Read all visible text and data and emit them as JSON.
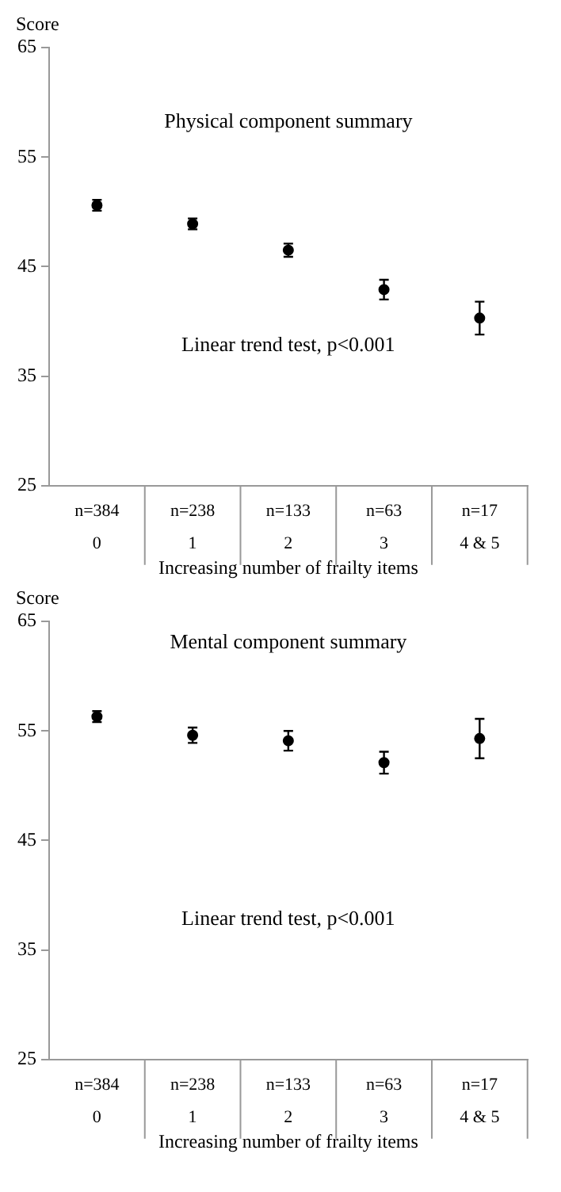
{
  "chart_data": [
    {
      "type": "scatter",
      "title": "Physical component summary",
      "ylabel": "Score",
      "xlabel": "Increasing number of frailty items",
      "categories": [
        "0",
        "1",
        "2",
        "3",
        "4 & 5"
      ],
      "series": [
        {
          "color": "#000000",
          "values": [
            50.6,
            48.9,
            46.5,
            42.9,
            40.3
          ],
          "errors": [
            0.5,
            0.5,
            0.6,
            0.9,
            1.5
          ]
        }
      ],
      "ylim": [
        25,
        65
      ],
      "yticks": [
        25,
        35,
        45,
        55,
        65
      ],
      "grid": false,
      "legend": false,
      "marker": "circle",
      "annotations": [
        "Linear trend test, p<0.001",
        "n=384",
        "n=238",
        "n=133",
        "n=63",
        "n=17"
      ]
    },
    {
      "type": "scatter",
      "title": "Mental component summary",
      "ylabel": "Score",
      "xlabel": "Increasing number of frailty items",
      "categories": [
        "0",
        "1",
        "2",
        "3",
        "4 & 5"
      ],
      "series": [
        {
          "color": "#000000",
          "values": [
            56.3,
            54.6,
            54.1,
            52.1,
            54.3
          ],
          "errors": [
            0.5,
            0.7,
            0.9,
            1.0,
            1.8
          ]
        }
      ],
      "ylim": [
        25,
        65
      ],
      "yticks": [
        25,
        35,
        45,
        55,
        65
      ],
      "grid": false,
      "legend": false,
      "marker": "circle",
      "annotations": [
        "Linear trend test, p<0.001",
        "n=384",
        "n=238",
        "n=133",
        "n=63",
        "n=17"
      ]
    }
  ]
}
